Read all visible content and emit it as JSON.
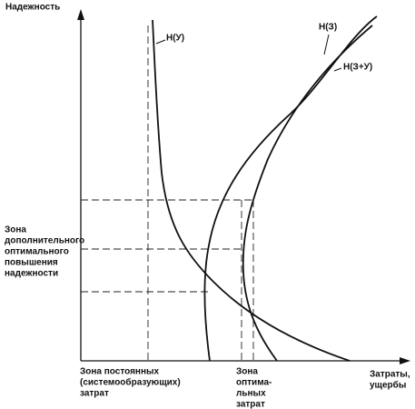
{
  "axes": {
    "y_label": "Надежность",
    "x_label": [
      "Затраты,",
      "ущербы"
    ]
  },
  "curves": [
    {
      "label": "Н(У)"
    },
    {
      "label": "Н(З)"
    },
    {
      "label": "Н(З+У)"
    }
  ],
  "zones": {
    "reliability": [
      "Зона",
      "дополнительного",
      "оптимального",
      "повышения",
      "надежности"
    ],
    "fixed_costs": [
      "Зона постоянных",
      "(системообразующих)",
      "затрат"
    ],
    "optimal_costs": [
      "Зона",
      "оптима-",
      "льных",
      "затрат"
    ]
  }
}
